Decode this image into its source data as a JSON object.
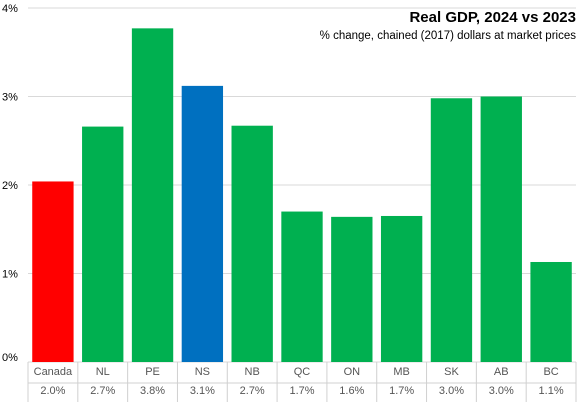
{
  "chart_data": {
    "type": "bar",
    "title": "Real GDP, 2024 vs 2023",
    "subtitle": "% change, chained (2017) dollars at market prices",
    "categories": [
      "Canada",
      "NL",
      "PE",
      "NS",
      "NB",
      "QC",
      "ON",
      "MB",
      "SK",
      "AB",
      "BC"
    ],
    "values": [
      2.04,
      2.66,
      3.77,
      3.12,
      2.67,
      1.7,
      1.64,
      1.65,
      2.98,
      3.0,
      1.13
    ],
    "value_labels": [
      "2.0%",
      "2.7%",
      "3.8%",
      "3.1%",
      "2.7%",
      "1.7%",
      "1.6%",
      "1.7%",
      "3.0%",
      "3.0%",
      "1.1%"
    ],
    "bar_colors": [
      "#ff0000",
      "#00b050",
      "#00b050",
      "#00b050",
      "#00b050",
      "#00b050",
      "#00b050",
      "#00b050",
      "#00b050",
      "#00b050",
      "#00b050"
    ],
    "highlight": {
      "NS": "#0070c0"
    },
    "ylim": [
      0,
      4
    ],
    "yticks": [
      "0%",
      "1%",
      "2%",
      "3%",
      "4%"
    ],
    "grid": true,
    "legend": "none"
  }
}
